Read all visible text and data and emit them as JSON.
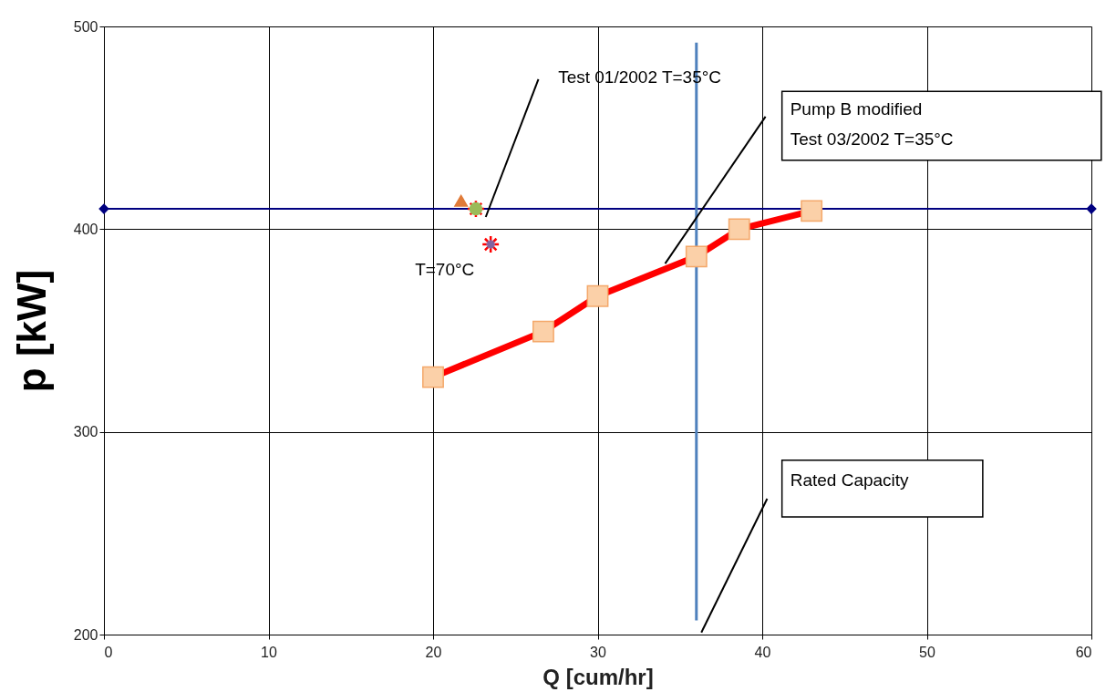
{
  "chart_data": {
    "type": "line",
    "xlabel": "Q [cum/hr]",
    "ylabel": "p  [kW]",
    "xlim": [
      0,
      60
    ],
    "xticks": [
      0,
      10,
      20,
      30,
      40,
      50,
      60
    ],
    "ylim": [
      200,
      500
    ],
    "yticks": [
      200,
      300,
      400,
      500
    ],
    "grid": true,
    "series": [
      {
        "color": "#000080",
        "marker": "diamond",
        "x": [
          0,
          60
        ],
        "values": [
          410,
          410
        ]
      },
      {
        "color": "#4f81bd",
        "marker": "none",
        "x": [
          36,
          36
        ],
        "values": [
          492,
          207
        ]
      },
      {
        "color": "#ff0000",
        "marker": "square",
        "x": [
          20,
          26.7,
          30,
          36,
          38.6,
          43
        ],
        "values": [
          327,
          349.5,
          367,
          386.5,
          400,
          409
        ]
      },
      {
        "type": "scatter",
        "color": "#ff0000",
        "marker": "cross",
        "x": [
          22.6,
          23.5
        ],
        "values": [
          410,
          392.5
        ]
      },
      {
        "type": "scatter",
        "color": "#e07b39",
        "marker": "triangle",
        "x": [
          21.7
        ],
        "values": [
          414
        ]
      },
      {
        "type": "scatter",
        "color": "#9bbb59",
        "marker": "circle",
        "x": [
          22.6
        ],
        "values": [
          410
        ]
      },
      {
        "type": "scatter",
        "color": "#8064a2",
        "marker": "cross",
        "x": [
          23.5
        ],
        "values": [
          392.5
        ]
      }
    ],
    "annotations": [
      "Test  01/2002   T=35°C",
      "Pump B modified\nTest  03/2002   T=35°C",
      "Rated  Capacity",
      "T=70°C"
    ]
  }
}
